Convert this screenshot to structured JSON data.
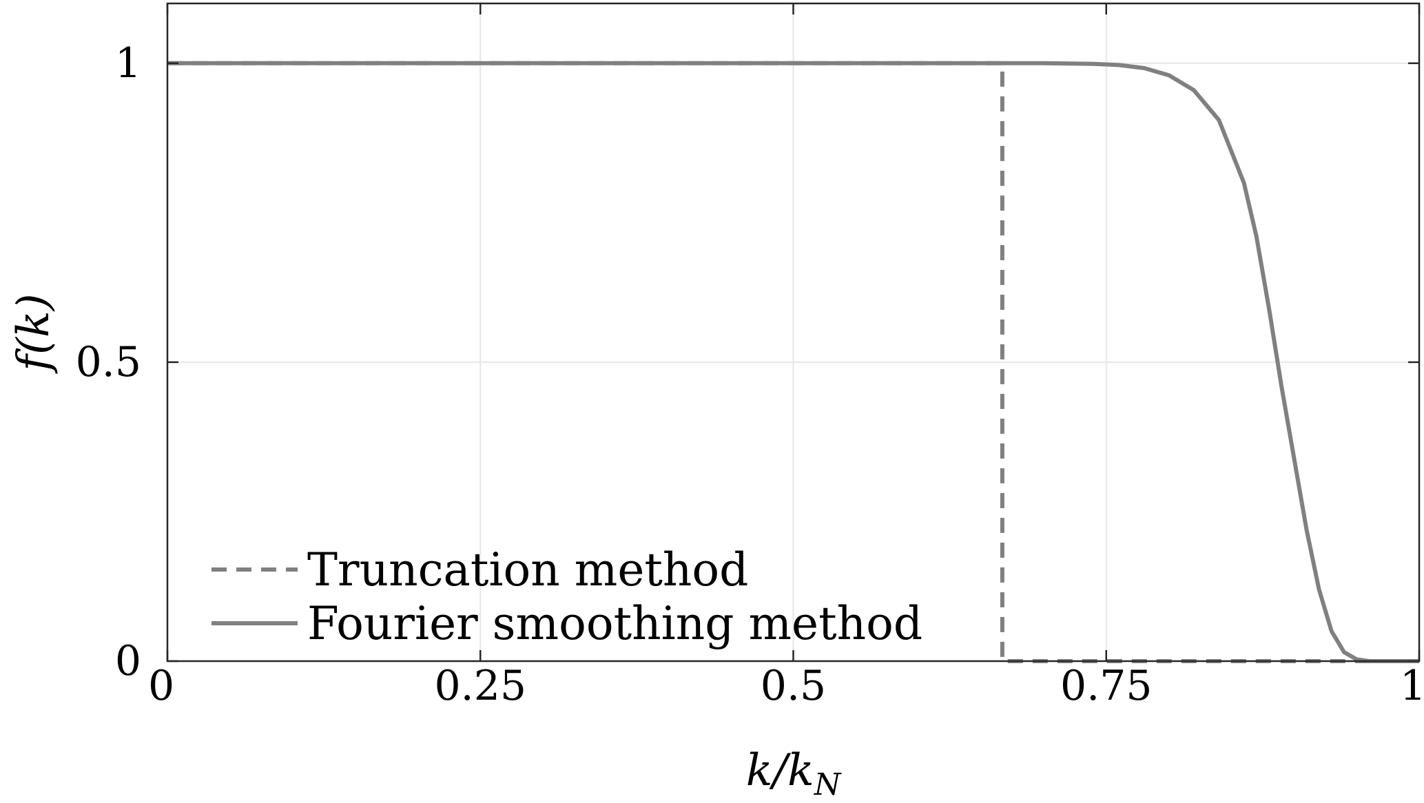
{
  "chart_data": {
    "type": "line",
    "xlabel": "k/k_N",
    "ylabel": "f(k)",
    "xlim": [
      0,
      1
    ],
    "ylim": [
      0,
      1.1
    ],
    "xticks": [
      {
        "value": 0,
        "label": "0"
      },
      {
        "value": 0.25,
        "label": "0.25"
      },
      {
        "value": 0.5,
        "label": "0.5"
      },
      {
        "value": 0.75,
        "label": "0.75"
      },
      {
        "value": 1,
        "label": "1"
      }
    ],
    "yticks": [
      {
        "value": 0,
        "label": "0"
      },
      {
        "value": 0.5,
        "label": "0.5"
      },
      {
        "value": 1,
        "label": "1"
      }
    ],
    "grid": true,
    "legend_position": "bottom-left",
    "series": [
      {
        "name": "Truncation method",
        "style": "dashed",
        "color": "#808080",
        "x": [
          0,
          0.667,
          0.667,
          1
        ],
        "y": [
          1,
          1,
          0,
          0
        ]
      },
      {
        "name": "Fourier smoothing method",
        "style": "solid",
        "color": "#808080",
        "x": [
          0,
          0.7,
          0.74,
          0.76,
          0.78,
          0.8,
          0.82,
          0.84,
          0.86,
          0.87,
          0.88,
          0.89,
          0.9,
          0.91,
          0.92,
          0.93,
          0.94,
          0.95,
          0.96,
          1.0
        ],
        "y": [
          1,
          1,
          0.999,
          0.997,
          0.992,
          0.98,
          0.955,
          0.905,
          0.8,
          0.71,
          0.59,
          0.46,
          0.34,
          0.22,
          0.12,
          0.05,
          0.015,
          0.003,
          0,
          0
        ]
      }
    ]
  }
}
